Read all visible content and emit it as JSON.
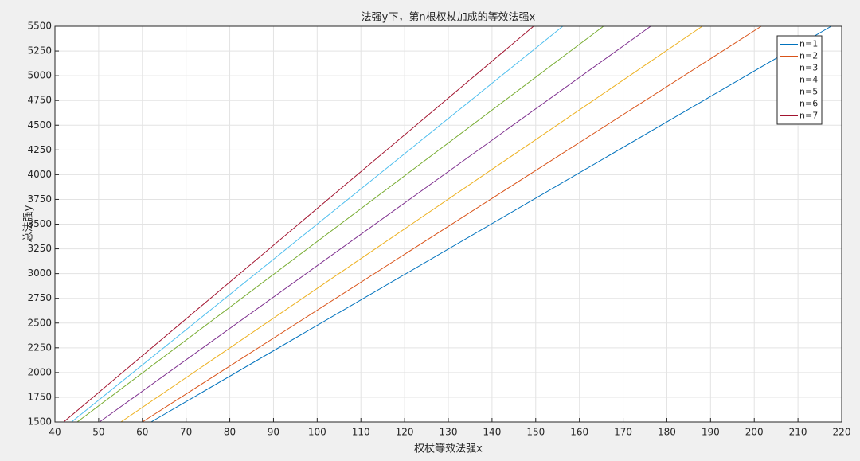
{
  "chart_data": {
    "type": "line",
    "title": "法强y下，第n根权杖加成的等效法强x",
    "x_label": "权杖等效法强x",
    "y_label": "总法强y",
    "xlim": [
      40,
      220
    ],
    "xticks": [
      40,
      50,
      60,
      70,
      80,
      90,
      100,
      110,
      120,
      130,
      140,
      150,
      160,
      170,
      180,
      190,
      200,
      210,
      220
    ],
    "ylim": [
      1500,
      5500
    ],
    "yticks": [
      1500,
      1750,
      2000,
      2250,
      2500,
      2750,
      3000,
      3250,
      3500,
      3750,
      4000,
      4250,
      4500,
      4750,
      5000,
      5250,
      5500
    ],
    "grid": true,
    "legend": "top-right",
    "series": [
      {
        "name": "n=1",
        "color": "#0072BD",
        "x": [
          62,
          217.6
        ],
        "values": [
          1500,
          5500
        ]
      },
      {
        "name": "n=2",
        "color": "#D95319",
        "x": [
          60,
          201.6
        ],
        "values": [
          1500,
          5500
        ]
      },
      {
        "name": "n=3",
        "color": "#EDB120",
        "x": [
          55.1,
          188.1
        ],
        "values": [
          1500,
          5500
        ]
      },
      {
        "name": "n=4",
        "color": "#7E2F8E",
        "x": [
          50.2,
          176.3
        ],
        "values": [
          1500,
          5500
        ]
      },
      {
        "name": "n=5",
        "color": "#77AC30",
        "x": [
          45.1,
          165.5
        ],
        "values": [
          1500,
          5500
        ]
      },
      {
        "name": "n=6",
        "color": "#4DBEEE",
        "x": [
          43.8,
          156.2
        ],
        "values": [
          1500,
          5500
        ]
      },
      {
        "name": "n=7",
        "color": "#A2142F",
        "x": [
          42,
          149.5
        ],
        "values": [
          1500,
          5500
        ]
      }
    ]
  }
}
